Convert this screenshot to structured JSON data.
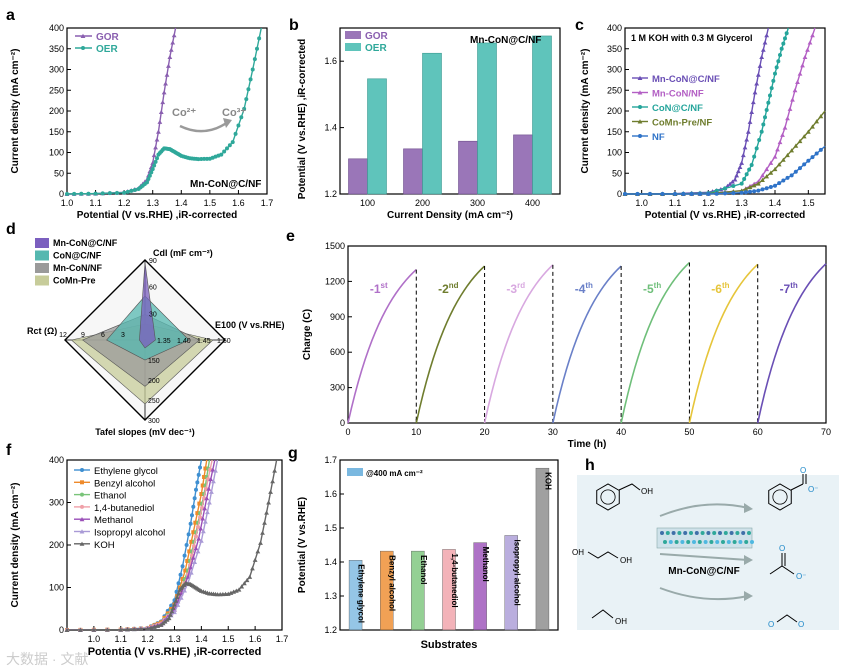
{
  "watermark": "大数据 · 文献",
  "colors": {
    "gor": "#8a5fb0",
    "oer": "#2fa89a",
    "bar_gor": "#9a76b8",
    "bar_oer": "#5fc4bb",
    "mncon_c": "#6a4fb5",
    "mncon": "#b35fc4",
    "con_c": "#25a59b",
    "comn": "#6f7d2e",
    "nf": "#2f73c8",
    "eg": "#3e8fd1",
    "benzyl": "#ee8a2b",
    "ethanol": "#79c479",
    "butanediol": "#f0a0a8",
    "methanol": "#9a4fb8",
    "isopropyl": "#a99ad6",
    "koh": "#666666",
    "sq_mncon_c": "#7b5fbf",
    "sq_con_c": "#55b8b0",
    "sq_mncon": "#9a9a9a",
    "sq_comn": "#c7cc9a"
  },
  "chart_data": [
    {
      "id": "a",
      "type": "line",
      "panel_label": "a",
      "xlabel": "Potential (V vs.RHE) ,iR-corrected",
      "ylabel": "Current density (mA cm⁻²)",
      "xlim": [
        1.0,
        1.7
      ],
      "ylim": [
        0,
        400
      ],
      "xticks": [
        "1.0",
        "1.1",
        "1.2",
        "1.3",
        "1.4",
        "1.5",
        "1.6",
        "1.7"
      ],
      "yticks": [
        "0",
        "50",
        "100",
        "150",
        "200",
        "250",
        "300",
        "350",
        "400"
      ],
      "annotation": "Mn-CoN@C/NF",
      "redox_labels": {
        "co2": "Co²⁺",
        "co3": "Co³⁺"
      },
      "series": [
        {
          "name": "GOR",
          "x": [
            1.0,
            1.1,
            1.2,
            1.25,
            1.28,
            1.3,
            1.32,
            1.34,
            1.36,
            1.38
          ],
          "y": [
            0,
            1,
            4,
            14,
            35,
            75,
            150,
            245,
            330,
            400
          ]
        },
        {
          "name": "OER",
          "x": [
            1.0,
            1.1,
            1.2,
            1.25,
            1.28,
            1.3,
            1.32,
            1.34,
            1.36,
            1.38,
            1.4,
            1.43,
            1.46,
            1.5,
            1.54,
            1.58,
            1.62,
            1.65,
            1.68
          ],
          "y": [
            0,
            1,
            3,
            12,
            28,
            60,
            95,
            110,
            108,
            100,
            92,
            86,
            84,
            85,
            95,
            125,
            205,
            300,
            400
          ]
        }
      ]
    },
    {
      "id": "b",
      "type": "bar",
      "panel_label": "b",
      "xlabel": "Current Density (mA cm⁻²)",
      "ylabel": "Potential (V vs.RHE) ,iR-corrected",
      "ylim": [
        1.2,
        1.7
      ],
      "yticks": [
        "1.2",
        "1.4",
        "1.6"
      ],
      "annotation": "Mn-CoN@C/NF",
      "categories": [
        "100",
        "200",
        "300",
        "400"
      ],
      "series": [
        {
          "name": "GOR",
          "values": [
            1.306,
            1.336,
            1.359,
            1.378
          ]
        },
        {
          "name": "OER",
          "values": [
            1.547,
            1.624,
            1.655,
            1.676
          ]
        }
      ]
    },
    {
      "id": "c",
      "type": "line",
      "panel_label": "c",
      "xlabel": "Potential (V vs.RHE) ,iR-corrected",
      "ylabel": "Current density (mA cm⁻²)",
      "xlim": [
        0.95,
        1.55
      ],
      "ylim": [
        0,
        400
      ],
      "xticks": [
        "1.0",
        "1.1",
        "1.2",
        "1.3",
        "1.4",
        "1.5"
      ],
      "yticks": [
        "0",
        "50",
        "100",
        "150",
        "200",
        "250",
        "300",
        "350",
        "400"
      ],
      "annotation": "1 M KOH with 0.3 M Glycerol",
      "series": [
        {
          "name": "Mn-CoN@C/NF",
          "x": [
            0.95,
            1.1,
            1.2,
            1.25,
            1.28,
            1.3,
            1.32,
            1.34,
            1.36,
            1.38
          ],
          "y": [
            0,
            1,
            4,
            14,
            35,
            75,
            150,
            245,
            330,
            400
          ]
        },
        {
          "name": "Mn-CoN/NF",
          "x": [
            0.95,
            1.1,
            1.2,
            1.3,
            1.35,
            1.4,
            1.43,
            1.46,
            1.49,
            1.52
          ],
          "y": [
            0,
            0,
            1,
            8,
            30,
            90,
            160,
            250,
            330,
            400
          ]
        },
        {
          "name": "CoN@C/NF",
          "x": [
            0.95,
            1.1,
            1.2,
            1.3,
            1.33,
            1.36,
            1.38,
            1.4,
            1.42,
            1.44
          ],
          "y": [
            0,
            0,
            2,
            25,
            70,
            150,
            220,
            290,
            350,
            400
          ]
        },
        {
          "name": "CoMn-Pre/NF",
          "x": [
            0.95,
            1.1,
            1.2,
            1.3,
            1.35,
            1.4,
            1.45,
            1.5,
            1.55
          ],
          "y": [
            0,
            0,
            1,
            8,
            25,
            60,
            105,
            150,
            200
          ]
        },
        {
          "name": "NF",
          "x": [
            0.95,
            1.1,
            1.2,
            1.3,
            1.35,
            1.4,
            1.45,
            1.5,
            1.55
          ],
          "y": [
            0,
            0,
            0,
            3,
            8,
            20,
            45,
            80,
            115
          ]
        }
      ]
    },
    {
      "id": "d",
      "type": "radar",
      "panel_label": "d",
      "axes": [
        {
          "name": "Cdl (mF cm⁻²)",
          "ticks": [
            "30",
            "60",
            "90"
          ]
        },
        {
          "name": "E100 (V vs.RHE)",
          "ticks": [
            "1.35",
            "1.40",
            "1.45",
            "1.50"
          ]
        },
        {
          "name": "Tafel slopes (mV dec⁻¹)",
          "ticks": [
            "150",
            "200",
            "250",
            "300"
          ]
        },
        {
          "name": "Rct (Ω)",
          "ticks": [
            "3",
            "6",
            "9",
            "12"
          ]
        }
      ],
      "score_max": 1.0,
      "series": [
        {
          "name": "Mn-CoN@C/NF",
          "scores": [
            0.97,
            0.13,
            0.1,
            0.07
          ]
        },
        {
          "name": "CoN@C/NF",
          "scores": [
            0.55,
            0.55,
            0.25,
            0.48
          ]
        },
        {
          "name": "Mn-CoN/NF",
          "scores": [
            0.32,
            0.68,
            0.58,
            0.78
          ]
        },
        {
          "name": "CoMn-Pre",
          "scores": [
            0.2,
            0.85,
            0.8,
            0.92
          ]
        }
      ]
    },
    {
      "id": "e",
      "type": "line",
      "panel_label": "e",
      "xlabel": "Time (h)",
      "ylabel": "Charge (C)",
      "xlim": [
        0,
        70
      ],
      "ylim": [
        0,
        1500
      ],
      "xticks": [
        "0",
        "10",
        "20",
        "30",
        "40",
        "50",
        "60",
        "70"
      ],
      "yticks": [
        "0",
        "300",
        "600",
        "900",
        "1200",
        "1500"
      ],
      "cycles": [
        {
          "label": "-1",
          "sup": "st",
          "end": 1300
        },
        {
          "label": "-2",
          "sup": "nd",
          "end": 1330
        },
        {
          "label": "-3",
          "sup": "rd",
          "end": 1340
        },
        {
          "label": "-4",
          "sup": "th",
          "end": 1330
        },
        {
          "label": "-5",
          "sup": "th",
          "end": 1360
        },
        {
          "label": "-6",
          "sup": "th",
          "end": 1345
        },
        {
          "label": "-7",
          "sup": "th",
          "end": 1350
        }
      ],
      "cycle_colors": [
        "#b070c8",
        "#6f7d2e",
        "#d8a8e0",
        "#6a80c8",
        "#6fbf7a",
        "#e6c53a",
        "#6a4fb5"
      ]
    },
    {
      "id": "f",
      "type": "line",
      "panel_label": "f",
      "xlabel": "Potentia (V vs.RHE) ,iR-corrected",
      "ylabel": "Current density (mA cm⁻²)",
      "xlim": [
        0.9,
        1.7
      ],
      "ylim": [
        0,
        400
      ],
      "xticks": [
        "1.0",
        "1.1",
        "1.2",
        "1.3",
        "1.4",
        "1.5",
        "1.6",
        "1.7"
      ],
      "yticks": [
        "0",
        "100",
        "200",
        "300",
        "400"
      ],
      "series": [
        {
          "name": "Ethylene glycol",
          "x": [
            0.9,
            1.1,
            1.2,
            1.25,
            1.3,
            1.33,
            1.36,
            1.38,
            1.4
          ],
          "y": [
            0,
            1,
            5,
            20,
            70,
            150,
            250,
            330,
            400
          ]
        },
        {
          "name": "Benzyl alcohol",
          "x": [
            0.9,
            1.1,
            1.2,
            1.25,
            1.3,
            1.34,
            1.37,
            1.4,
            1.42
          ],
          "y": [
            0,
            1,
            4,
            18,
            60,
            140,
            230,
            320,
            400
          ]
        },
        {
          "name": "Ethanol",
          "x": [
            0.9,
            1.1,
            1.2,
            1.25,
            1.3,
            1.35,
            1.38,
            1.41,
            1.43
          ],
          "y": [
            0,
            1,
            4,
            15,
            55,
            140,
            230,
            320,
            400
          ]
        },
        {
          "name": "1,4-butanediol",
          "x": [
            0.9,
            1.1,
            1.2,
            1.25,
            1.3,
            1.35,
            1.38,
            1.41,
            1.44
          ],
          "y": [
            0,
            1,
            4,
            15,
            50,
            130,
            220,
            310,
            400
          ]
        },
        {
          "name": "Methanol",
          "x": [
            0.9,
            1.1,
            1.2,
            1.25,
            1.3,
            1.35,
            1.39,
            1.42,
            1.45
          ],
          "y": [
            0,
            1,
            4,
            14,
            48,
            125,
            215,
            310,
            400
          ]
        },
        {
          "name": "Isopropyl alcohol",
          "x": [
            0.9,
            1.1,
            1.2,
            1.25,
            1.3,
            1.35,
            1.4,
            1.43,
            1.46
          ],
          "y": [
            0,
            1,
            3,
            12,
            42,
            110,
            210,
            300,
            400
          ]
        },
        {
          "name": "KOH",
          "x": [
            0.9,
            1.1,
            1.2,
            1.25,
            1.28,
            1.3,
            1.32,
            1.34,
            1.36,
            1.38,
            1.4,
            1.43,
            1.46,
            1.5,
            1.54,
            1.58,
            1.62,
            1.65,
            1.68
          ],
          "y": [
            0,
            1,
            3,
            12,
            28,
            60,
            95,
            110,
            108,
            100,
            92,
            86,
            84,
            85,
            95,
            125,
            205,
            300,
            400
          ]
        }
      ]
    },
    {
      "id": "g",
      "type": "bar",
      "panel_label": "g",
      "xlabel": "Substrates",
      "ylabel": "Potential (V vs.RHE)",
      "ylim": [
        1.2,
        1.7
      ],
      "yticks": [
        "1.2",
        "1.3",
        "1.4",
        "1.5",
        "1.6",
        "1.7"
      ],
      "legend": "@400 mA cm⁻²",
      "categories": [
        "Ethylene glycol",
        "Benzyl alcohol",
        "Ethanol",
        "1,4-butanediol",
        "Methanol",
        "Isopropyl alcohol",
        "KOH"
      ],
      "values": [
        1.405,
        1.432,
        1.432,
        1.437,
        1.457,
        1.478,
        1.676
      ],
      "bar_colors": [
        "#7ab8e0",
        "#ee8a2b",
        "#79c479",
        "#f0a0a8",
        "#9a4fb8",
        "#a99ad6",
        "#888888"
      ]
    }
  ],
  "scheme": {
    "panel_label": "h",
    "catalyst_label": "Mn-CoN@C/NF",
    "oh_label": "OH",
    "o_label": "O",
    "o_minus": "O⁻"
  }
}
